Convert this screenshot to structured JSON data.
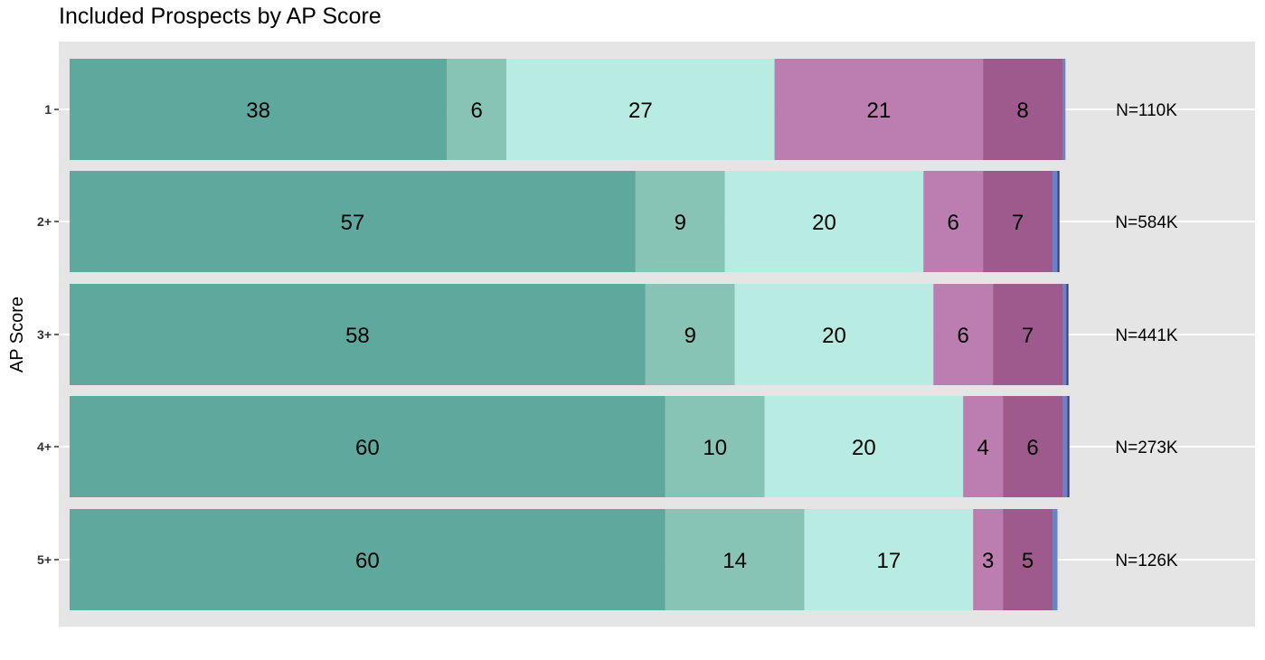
{
  "chart_data": {
    "type": "bar",
    "orientation": "horizontal",
    "stacked": true,
    "title": "Included Prospects by AP Score",
    "ylabel": "AP Score",
    "xlabel": "",
    "xlim": [
      0,
      100
    ],
    "grid": true,
    "legend": "none",
    "categories": [
      "1",
      "2+",
      "3+",
      "4+",
      "5+"
    ],
    "segment_colors": [
      "#5EA89E",
      "#87C4B5",
      "#B8EBE2",
      "#BC7DB0",
      "#9E5A8C",
      "#6A82C8",
      "#3E3E6E"
    ],
    "segments": [
      [
        38,
        6,
        27,
        21,
        8,
        0.3,
        0
      ],
      [
        57,
        9,
        20,
        6,
        7,
        0.5,
        0.2
      ],
      [
        58,
        9,
        20,
        6,
        7,
        0.4,
        0.2
      ],
      [
        60,
        10,
        20,
        4,
        6,
        0.5,
        0.2
      ],
      [
        60,
        14,
        17,
        3,
        5,
        0.5,
        0
      ]
    ],
    "segment_labels": [
      [
        "38",
        "6",
        "27",
        "21",
        "8",
        "",
        ""
      ],
      [
        "57",
        "9",
        "20",
        "6",
        "7",
        "",
        ""
      ],
      [
        "58",
        "9",
        "20",
        "6",
        "7",
        "",
        ""
      ],
      [
        "60",
        "10",
        "20",
        "4",
        "6",
        "",
        ""
      ],
      [
        "60",
        "14",
        "17",
        "3",
        "5",
        "",
        ""
      ]
    ],
    "annotations": [
      "N=110K",
      "N=584K",
      "N=441K",
      "N=273K",
      "N=126K"
    ],
    "panel_color": "#E5E5E5",
    "grid_color": "#FFFFFF"
  }
}
